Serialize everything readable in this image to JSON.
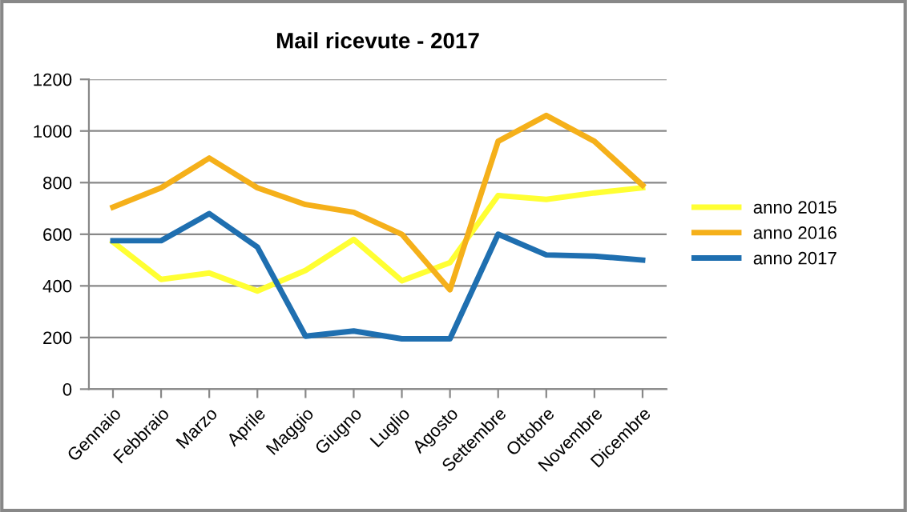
{
  "chart_data": {
    "type": "line",
    "title": "Mail ricevute - 2017",
    "categories": [
      "Gennaio",
      "Febbraio",
      "Marzo",
      "Aprile",
      "Maggio",
      "Giugno",
      "Luglio",
      "Agosto",
      "Settembre",
      "Ottobre",
      "Novembre",
      "Dicembre"
    ],
    "series": [
      {
        "name": "anno 2015",
        "color": "#ffff33",
        "values": [
          570,
          425,
          450,
          380,
          460,
          580,
          420,
          490,
          750,
          735,
          760,
          780
        ]
      },
      {
        "name": "anno 2016",
        "color": "#f5b01a",
        "values": [
          705,
          780,
          895,
          780,
          715,
          685,
          600,
          385,
          960,
          1060,
          960,
          790
        ]
      },
      {
        "name": "anno 2017",
        "color": "#1f6fb0",
        "values": [
          575,
          575,
          680,
          550,
          205,
          225,
          195,
          195,
          600,
          520,
          515,
          500
        ]
      }
    ],
    "ylim": [
      0,
      1200
    ],
    "yticks": [
      0,
      200,
      400,
      600,
      800,
      1000,
      1200
    ],
    "grid": "y",
    "legend": "right",
    "marker": "none",
    "line_style": "solid"
  }
}
